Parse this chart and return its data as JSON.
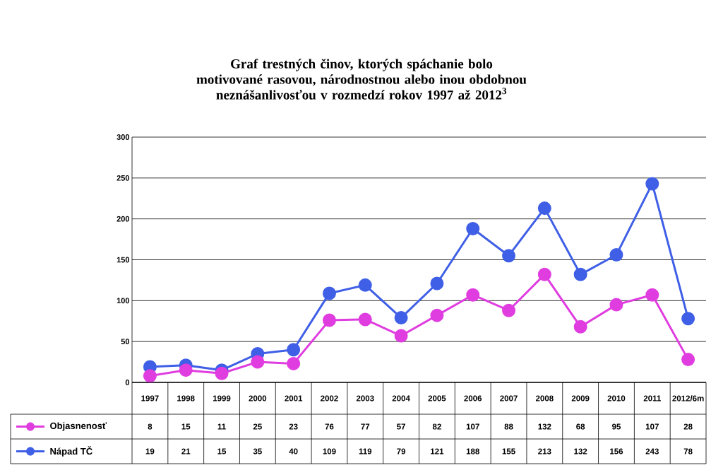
{
  "chart_data": {
    "type": "line",
    "title": "Graf trestných činov, ktorých spáchanie bolo motivované rasovou, národnostnou alebo inou obdobnou neznášanlivosťou v rozmedzí rokov 1997 až 2012$^{3}$",
    "categories": [
      "1997",
      "1998",
      "1999",
      "2000",
      "2001",
      "2002",
      "2003",
      "2004",
      "2005",
      "2006",
      "2007",
      "2008",
      "2009",
      "2010",
      "2011",
      "2012/6m"
    ],
    "series": [
      {
        "name": "Objasnenosť",
        "color": "#e03de0",
        "values": [
          8,
          15,
          11,
          25,
          23,
          76,
          77,
          57,
          82,
          107,
          88,
          132,
          68,
          95,
          107,
          28
        ]
      },
      {
        "name": "Nápad TČ",
        "color": "#3f5fe6",
        "values": [
          19,
          21,
          15,
          35,
          40,
          109,
          119,
          79,
          121,
          188,
          155,
          213,
          132,
          156,
          243,
          78
        ]
      }
    ],
    "ylim": [
      0,
      300
    ],
    "yticks": [
      0,
      50,
      100,
      150,
      200,
      250,
      300
    ],
    "grid": "y",
    "marker": "circle",
    "line_style": "solid",
    "legend": "bottom",
    "data_labels": true
  }
}
